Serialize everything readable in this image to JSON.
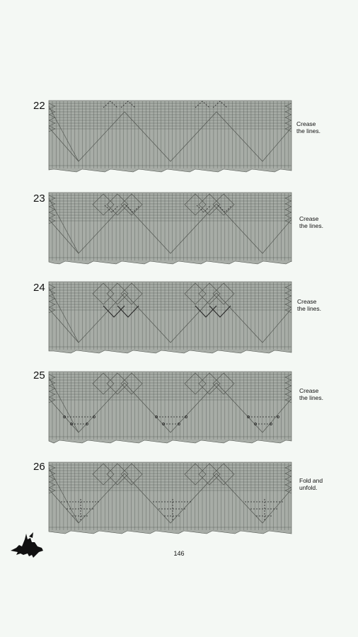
{
  "steps": [
    {
      "number": "22",
      "caption_lines": [
        "Crease",
        "the lines."
      ]
    },
    {
      "number": "23",
      "caption_lines": [
        "Crease",
        "the lines."
      ]
    },
    {
      "number": "24",
      "caption_lines": [
        "Crease",
        "the lines."
      ]
    },
    {
      "number": "25",
      "caption_lines": [
        "Crease",
        "the lines."
      ]
    },
    {
      "number": "26",
      "caption_lines": [
        "Fold and",
        "unfold."
      ]
    }
  ],
  "page_number": "146",
  "colors": {
    "paper": "#a7aca6",
    "line": "#4b4f4a",
    "background": "#f4f8f4"
  },
  "icons": {
    "logo": "dragon-silhouette-icon"
  }
}
